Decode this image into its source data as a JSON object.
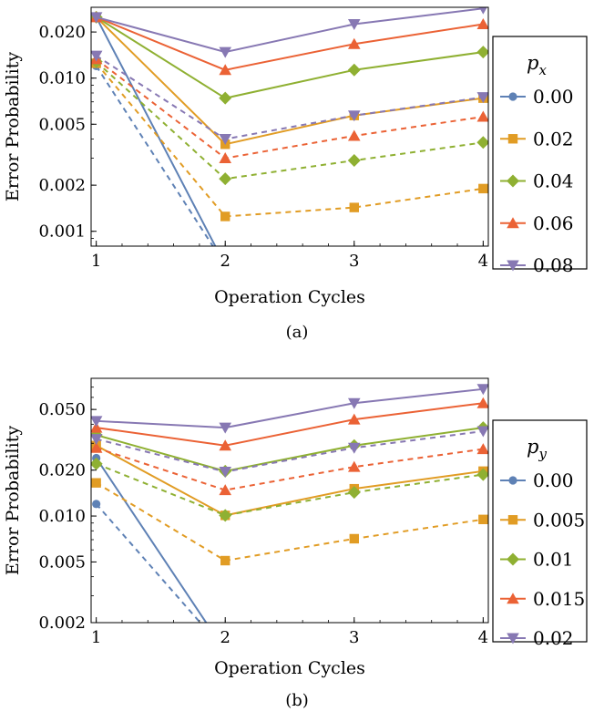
{
  "figure": {
    "panels": [
      {
        "panel_label": "(a)",
        "legend_title": "p",
        "legend_subscript": "x"
      },
      {
        "panel_label": "(b)",
        "legend_title": "p",
        "legend_subscript": "y"
      }
    ]
  },
  "colors": {
    "series": [
      "#5e81b5",
      "#e19c24",
      "#8fb032",
      "#eb6235",
      "#8778b3"
    ],
    "frame": "#000000"
  },
  "chart_data": [
    {
      "type": "line",
      "y_scale": "log",
      "xlabel": "Operation Cycles",
      "ylabel": "Error Probability",
      "x": [
        1,
        2,
        3,
        4
      ],
      "xticks": [
        1,
        2,
        3,
        4
      ],
      "yticks": [
        0.001,
        0.002,
        0.005,
        0.01,
        0.02
      ],
      "ytick_labels": [
        "0.001",
        "0.002",
        "0.005",
        "0.010",
        "0.020"
      ],
      "ylim": [
        0.0008,
        0.029
      ],
      "legend_title": "p_x",
      "legend_position": "right",
      "markers": [
        "circle",
        "square",
        "diamond",
        "triangle-up",
        "triangle-down"
      ],
      "series": [
        {
          "name": "0.00",
          "style": "solid",
          "values": [
            0.025,
            0.0006,
            null,
            null
          ]
        },
        {
          "name": "0.02",
          "style": "solid",
          "values": [
            0.025,
            0.0037,
            0.0057,
            0.0074
          ]
        },
        {
          "name": "0.04",
          "style": "solid",
          "values": [
            0.025,
            0.0074,
            0.0113,
            0.0148
          ]
        },
        {
          "name": "0.06",
          "style": "solid",
          "values": [
            0.025,
            0.0113,
            0.0167,
            0.0225
          ]
        },
        {
          "name": "0.08",
          "style": "solid",
          "values": [
            0.025,
            0.0148,
            0.0225,
            0.0285
          ]
        },
        {
          "name": "0.00",
          "style": "dashed",
          "values": [
            0.012,
            0.0006,
            null,
            null
          ]
        },
        {
          "name": "0.02",
          "style": "dashed",
          "values": [
            0.0125,
            0.00125,
            0.00143,
            0.0019
          ]
        },
        {
          "name": "0.04",
          "style": "dashed",
          "values": [
            0.0128,
            0.0022,
            0.0029,
            0.0038
          ]
        },
        {
          "name": "0.06",
          "style": "dashed",
          "values": [
            0.0133,
            0.003,
            0.0042,
            0.0056
          ]
        },
        {
          "name": "0.08",
          "style": "dashed",
          "values": [
            0.014,
            0.004,
            0.0057,
            0.0075
          ]
        }
      ]
    },
    {
      "type": "line",
      "y_scale": "log",
      "xlabel": "Operation Cycles",
      "ylabel": "Error Probability",
      "x": [
        1,
        2,
        3,
        4
      ],
      "xticks": [
        1,
        2,
        3,
        4
      ],
      "yticks": [
        0.002,
        0.005,
        0.01,
        0.02,
        0.05
      ],
      "ytick_labels": [
        "0.002",
        "0.005",
        "0.010",
        "0.020",
        "0.050"
      ],
      "ylim": [
        0.002,
        0.08
      ],
      "legend_title": "p_y",
      "legend_position": "right",
      "markers": [
        "circle",
        "square",
        "diamond",
        "triangle-up",
        "triangle-down"
      ],
      "series": [
        {
          "name": "0.00",
          "style": "solid",
          "values": [
            0.024,
            0.0013,
            null,
            null
          ]
        },
        {
          "name": "0.005",
          "style": "solid",
          "values": [
            0.029,
            0.0101,
            0.0151,
            0.0197
          ]
        },
        {
          "name": "0.01",
          "style": "solid",
          "values": [
            0.034,
            0.0197,
            0.029,
            0.038
          ]
        },
        {
          "name": "0.015",
          "style": "solid",
          "values": [
            0.038,
            0.029,
            0.043,
            0.055
          ]
        },
        {
          "name": "0.02",
          "style": "solid",
          "values": [
            0.042,
            0.038,
            0.055,
            0.068
          ]
        },
        {
          "name": "0.00",
          "style": "dashed",
          "values": [
            0.012,
            0.0013,
            null,
            null
          ]
        },
        {
          "name": "0.005",
          "style": "dashed",
          "values": [
            0.0165,
            0.0051,
            0.0071,
            0.0095
          ]
        },
        {
          "name": "0.01",
          "style": "dashed",
          "values": [
            0.022,
            0.0101,
            0.0143,
            0.0187
          ]
        },
        {
          "name": "0.015",
          "style": "dashed",
          "values": [
            0.028,
            0.0148,
            0.021,
            0.0275
          ]
        },
        {
          "name": "0.02",
          "style": "dashed",
          "values": [
            0.032,
            0.0195,
            0.028,
            0.036
          ]
        }
      ]
    }
  ]
}
